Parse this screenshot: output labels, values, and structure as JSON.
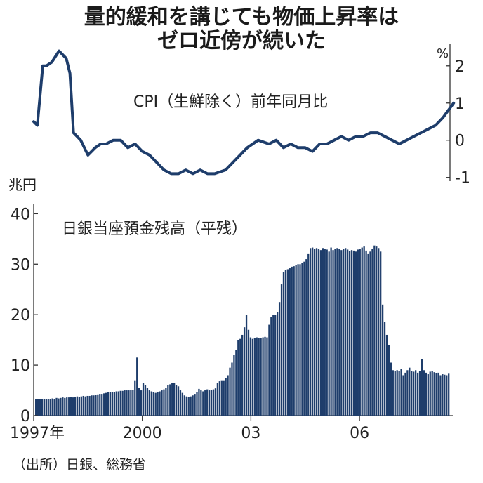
{
  "title_line1": "量的緩和を講じても物価上昇率は",
  "title_line2": "ゼロ近傍が続いた",
  "source": "（出所）日銀、総務省",
  "colors": {
    "line": "#1e3d6b",
    "bar": "#1e3d6b",
    "axis": "#333333"
  },
  "chart_data": [
    {
      "type": "line",
      "title": "CPI（生鮮除く）前年同月比",
      "unit": "%",
      "ylim": [
        -1.1,
        2.6
      ],
      "yticks": [
        "2",
        "1",
        "0",
        "-1"
      ],
      "ytick_values": [
        2,
        1,
        0,
        -1
      ],
      "axis_side": "right",
      "grid": false,
      "x": [
        1997.0,
        1997.1,
        1997.25,
        1997.35,
        1997.5,
        1997.7,
        1997.9,
        1998.0,
        1998.1,
        1998.3,
        1998.5,
        1998.7,
        1998.85,
        1999.0,
        1999.2,
        1999.4,
        1999.6,
        1999.8,
        2000.0,
        2000.2,
        2000.4,
        2000.6,
        2000.8,
        2001.0,
        2001.2,
        2001.4,
        2001.6,
        2001.8,
        2002.0,
        2002.3,
        2002.6,
        2002.9,
        2003.2,
        2003.5,
        2003.7,
        2003.9,
        2004.1,
        2004.3,
        2004.5,
        2004.7,
        2004.9,
        2005.1,
        2005.3,
        2005.5,
        2005.7,
        2005.9,
        2006.1,
        2006.3,
        2006.5,
        2006.7,
        2006.9,
        2007.1,
        2007.3,
        2007.5,
        2007.7,
        2007.9,
        2008.1,
        2008.3,
        2008.45,
        2008.6
      ],
      "values": [
        0.5,
        0.4,
        2.0,
        2.0,
        2.1,
        2.4,
        2.2,
        1.8,
        0.2,
        0.0,
        -0.4,
        -0.2,
        -0.1,
        -0.1,
        0.0,
        0.0,
        -0.2,
        -0.1,
        -0.3,
        -0.4,
        -0.6,
        -0.8,
        -0.9,
        -0.9,
        -0.8,
        -0.9,
        -0.8,
        -0.9,
        -0.9,
        -0.8,
        -0.5,
        -0.2,
        0.0,
        -0.1,
        0.0,
        -0.2,
        -0.1,
        -0.2,
        -0.2,
        -0.3,
        -0.1,
        -0.1,
        0.0,
        0.1,
        0.0,
        0.1,
        0.1,
        0.2,
        0.2,
        0.1,
        0.0,
        -0.1,
        0.0,
        0.1,
        0.2,
        0.3,
        0.4,
        0.6,
        0.8,
        1.0
      ]
    },
    {
      "type": "bar",
      "title": "日銀当座預金残高（平残）",
      "unit": "兆円",
      "ylim": [
        0,
        42
      ],
      "yticks": [
        "40",
        "30",
        "20",
        "10",
        "0"
      ],
      "ytick_values": [
        40,
        30,
        20,
        10,
        0
      ],
      "axis_side": "left",
      "grid": false,
      "xticks": [
        "1997年",
        "2000",
        "03",
        "06"
      ],
      "xtick_values": [
        1997.0,
        2000.0,
        2003.0,
        2006.0
      ],
      "x_start": 1997.0,
      "x_end": 2008.5,
      "values": [
        3.3,
        3.2,
        3.3,
        3.3,
        3.2,
        3.3,
        3.3,
        3.2,
        3.4,
        3.3,
        3.5,
        3.4,
        3.5,
        3.6,
        3.5,
        3.6,
        3.6,
        3.7,
        3.6,
        3.7,
        3.8,
        3.7,
        3.8,
        3.9,
        3.8,
        3.9,
        3.9,
        4.0,
        4.0,
        4.1,
        4.2,
        4.3,
        4.3,
        4.4,
        4.5,
        4.6,
        4.6,
        4.7,
        4.7,
        4.8,
        4.8,
        4.9,
        4.9,
        5.0,
        5.0,
        5.0,
        5.1,
        5.1,
        7.0,
        11.5,
        5.5,
        5.0,
        6.5,
        6.0,
        5.5,
        5.0,
        4.8,
        4.6,
        4.5,
        4.6,
        4.8,
        5.0,
        5.2,
        5.5,
        6.0,
        6.2,
        6.5,
        6.5,
        6.0,
        5.8,
        5.0,
        4.5,
        4.0,
        3.8,
        3.7,
        3.8,
        4.0,
        4.3,
        4.6,
        5.3,
        5.0,
        4.8,
        5.0,
        5.2,
        5.0,
        5.1,
        5.2,
        5.4,
        6.5,
        6.8,
        7.0,
        7.0,
        7.5,
        8.0,
        9.5,
        10.5,
        12.0,
        13.0,
        15.0,
        15.2,
        16.0,
        17.5,
        20.0,
        17.0,
        15.5,
        15.2,
        15.3,
        15.5,
        15.3,
        15.3,
        15.5,
        15.6,
        15.5,
        18.0,
        19.5,
        20.0,
        20.0,
        20.5,
        22.5,
        26.0,
        28.5,
        28.8,
        29.0,
        29.2,
        29.5,
        29.6,
        29.8,
        30.0,
        30.0,
        30.2,
        30.5,
        31.0,
        32.0,
        33.2,
        33.3,
        33.0,
        33.2,
        33.0,
        32.8,
        33.2,
        33.0,
        32.9,
        32.5,
        33.3,
        32.8,
        33.0,
        33.2,
        33.0,
        32.8,
        33.0,
        33.2,
        32.9,
        32.6,
        32.8,
        32.7,
        32.5,
        32.9,
        33.0,
        33.3,
        33.5,
        32.7,
        32.0,
        32.5,
        33.0,
        33.7,
        33.5,
        33.2,
        32.5,
        22.0,
        18.5,
        16.0,
        14.0,
        10.5,
        9.0,
        8.8,
        9.0,
        8.9,
        9.2,
        8.0,
        8.5,
        9.0,
        9.5,
        8.8,
        8.7,
        9.0,
        8.5,
        8.8,
        11.2,
        9.0,
        8.5,
        8.2,
        8.7,
        8.9,
        8.6,
        8.4,
        8.5,
        8.0,
        8.2,
        8.1,
        8.0,
        8.3
      ]
    }
  ]
}
